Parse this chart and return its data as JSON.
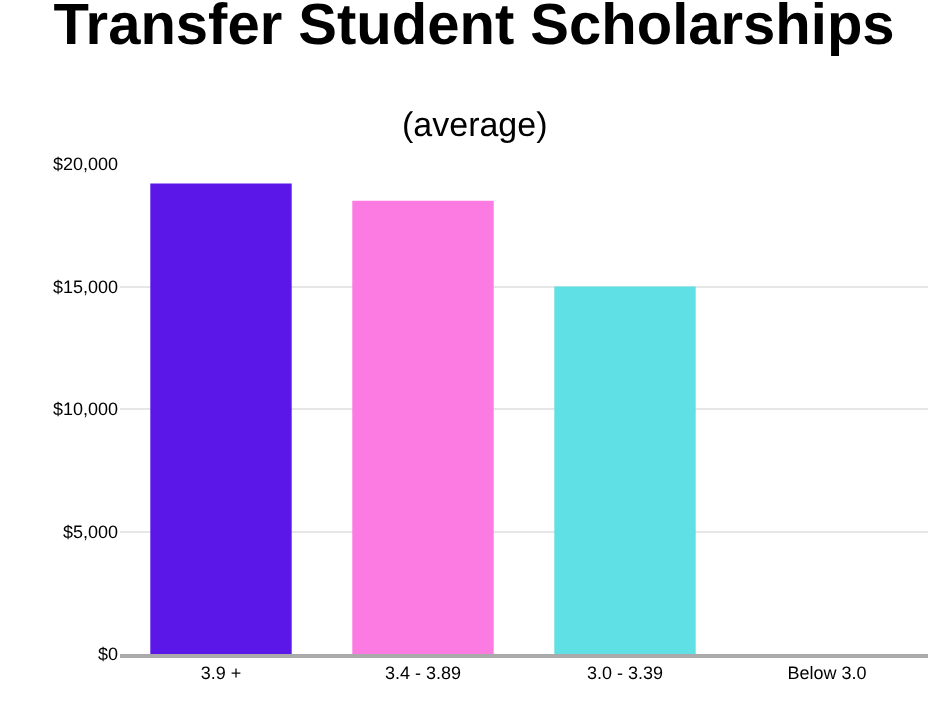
{
  "chart_data": {
    "type": "bar",
    "title": "Transfer Student Scholarships",
    "subtitle": "(average)",
    "categories": [
      "3.9 +",
      "3.4 - 3.89",
      "3.0 - 3.39",
      "Below 3.0"
    ],
    "values": [
      19200,
      18500,
      15000,
      null
    ],
    "colors": [
      "#5b17e8",
      "#fb7be3",
      "#5ee0e4",
      "#cccccc"
    ],
    "ylim": [
      0,
      20000
    ],
    "yticks": [
      {
        "value": 0,
        "label": "$0"
      },
      {
        "value": 5000,
        "label": "$5,000"
      },
      {
        "value": 10000,
        "label": "$10,000"
      },
      {
        "value": 15000,
        "label": "$15,000"
      },
      {
        "value": 20000,
        "label": "$20,000"
      }
    ],
    "grid": "y"
  }
}
